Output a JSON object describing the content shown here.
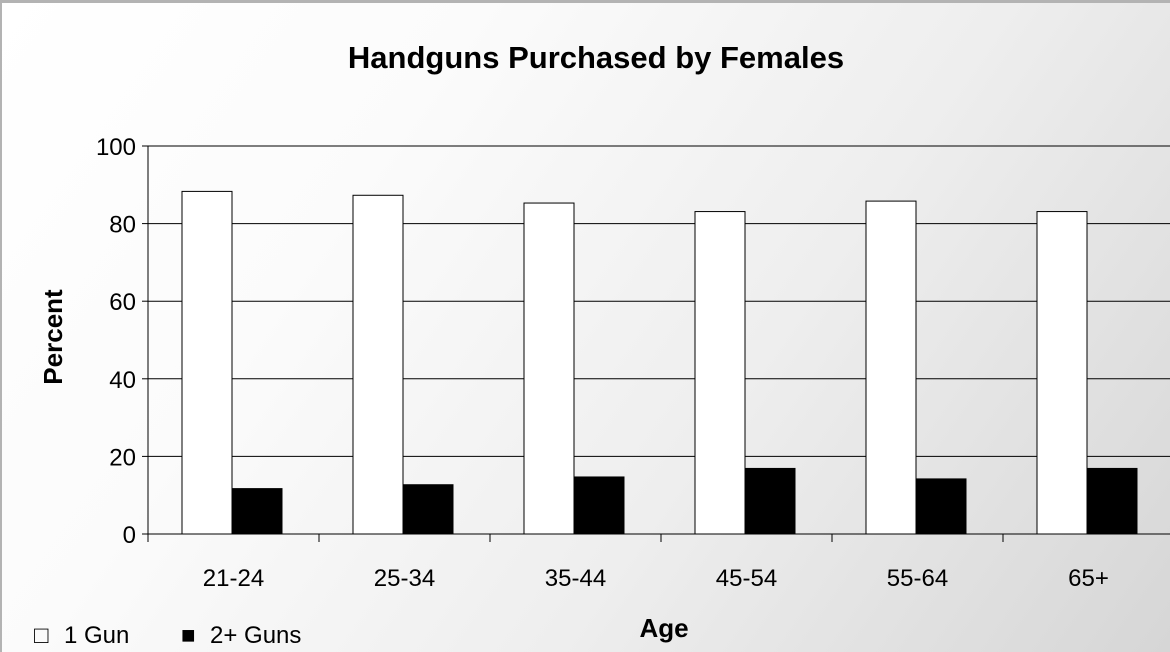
{
  "chart_data": {
    "type": "bar",
    "title": "Handguns Purchased by Females",
    "xlabel": "Age",
    "ylabel": "Percent",
    "categories": [
      "21-24",
      "25-34",
      "35-44",
      "45-54",
      "55-64",
      "65+"
    ],
    "series": [
      {
        "name": "1 Gun",
        "values": [
          88.3,
          87.3,
          85.3,
          83.1,
          85.8,
          83.1
        ],
        "color": "#ffffff"
      },
      {
        "name": "2+ Guns",
        "values": [
          11.7,
          12.7,
          14.7,
          16.9,
          14.2,
          16.9
        ],
        "color": "#000000"
      }
    ],
    "ylim": [
      0,
      100
    ],
    "yticks": [
      "0",
      "20",
      "40",
      "60",
      "80",
      "100"
    ],
    "grid": true,
    "legend_position": "bottom-left",
    "legend": [
      {
        "symbol": "□",
        "label": "1 Gun"
      },
      {
        "symbol": "■",
        "label": "2+ Guns"
      }
    ]
  }
}
